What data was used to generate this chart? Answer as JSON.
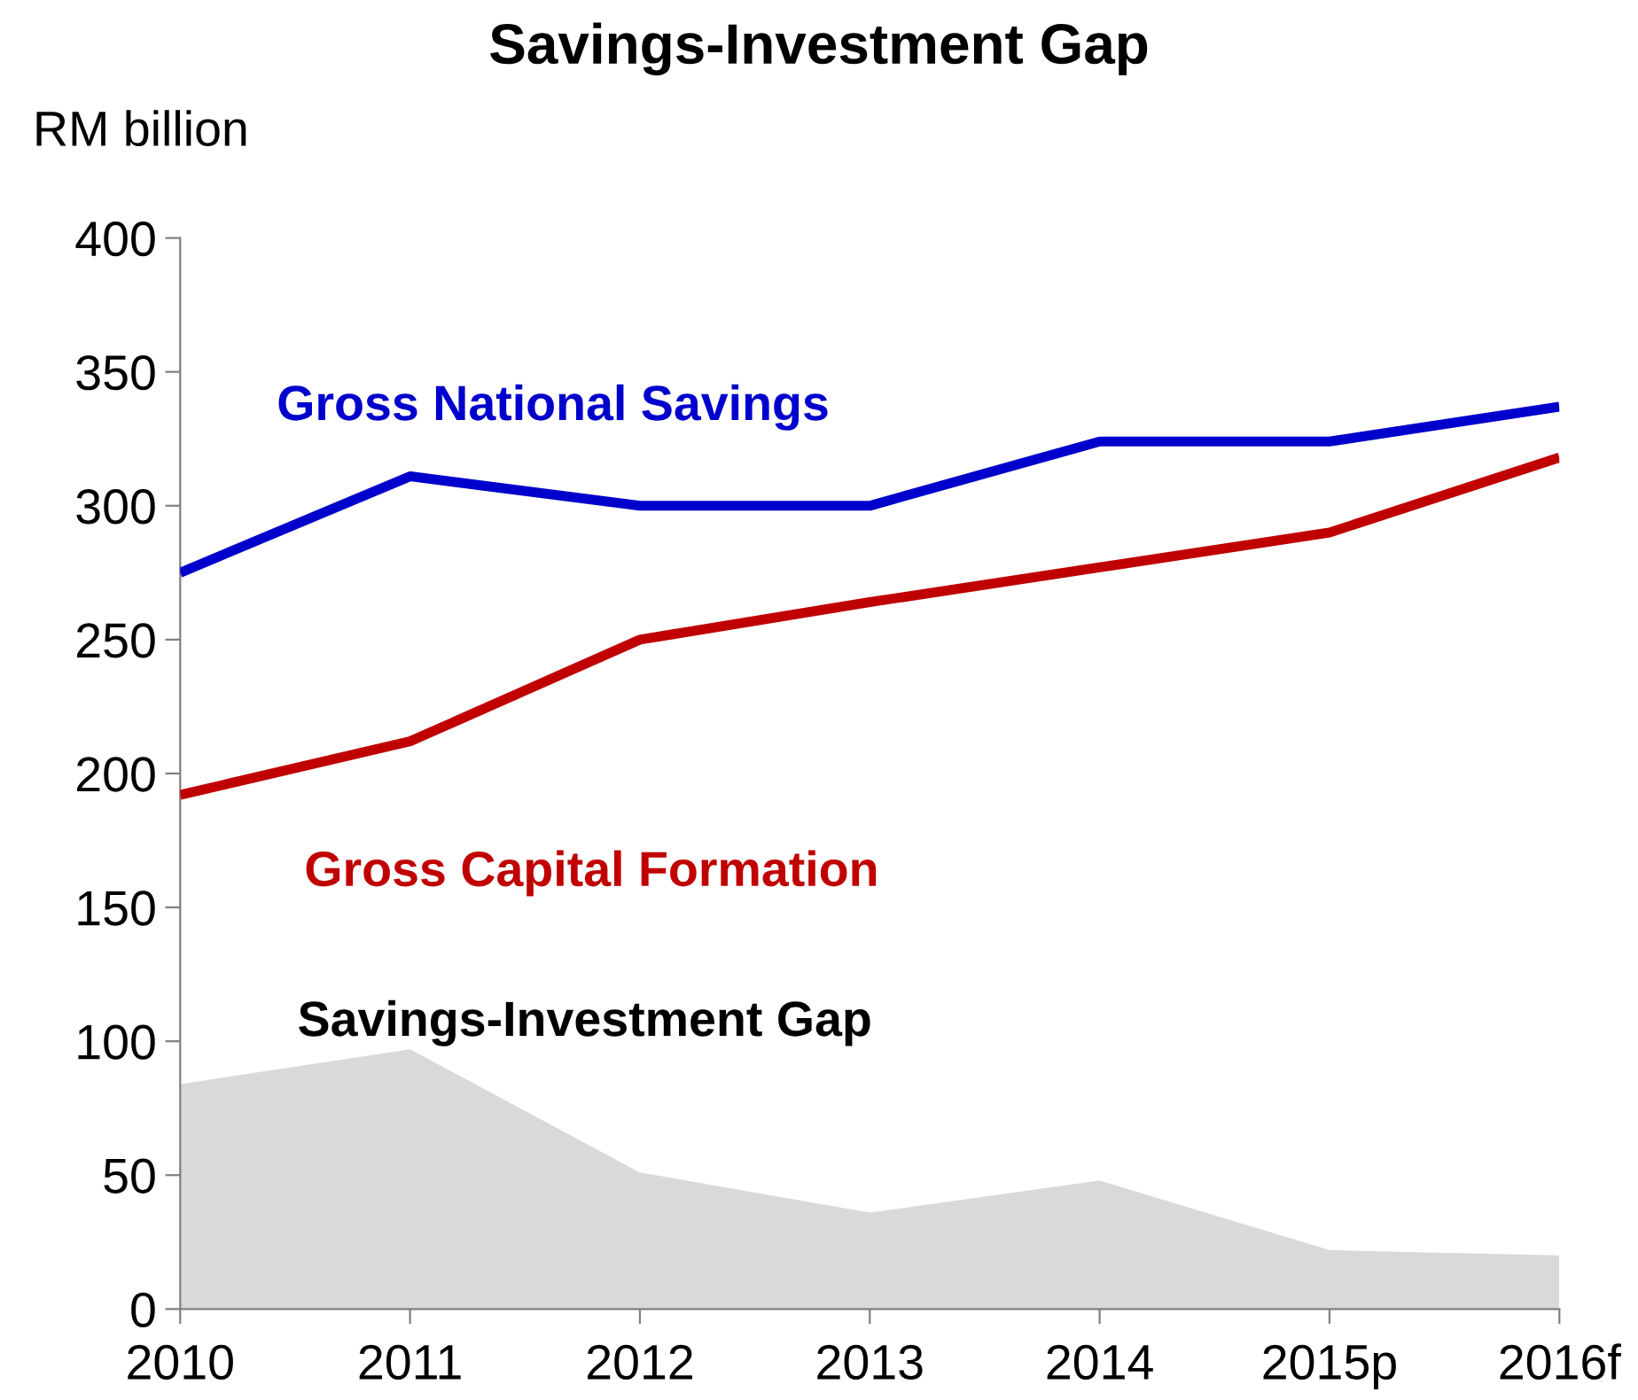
{
  "chart_data": {
    "type": "line",
    "title": "Savings-Investment Gap",
    "ylabel": "RM billion",
    "categories": [
      "2010",
      "2011",
      "2012",
      "2013",
      "2014",
      "2015p",
      "2016f"
    ],
    "series": [
      {
        "name": "Gross National Savings",
        "color": "#0000cc",
        "values": [
          275,
          311,
          300,
          300,
          324,
          324,
          337
        ]
      },
      {
        "name": "Gross Capital Formation",
        "color": "#c00000",
        "values": [
          192,
          212,
          250,
          264,
          277,
          290,
          318
        ]
      },
      {
        "name": "Savings-Investment Gap",
        "type": "area",
        "color": "#d9d9d9",
        "values": [
          84,
          97,
          51,
          36,
          48,
          22,
          20
        ]
      }
    ],
    "ylim": [
      0,
      400
    ],
    "yticks": [
      0,
      50,
      100,
      150,
      200,
      250,
      300,
      350,
      400
    ],
    "grid": false,
    "legend": false,
    "marker": "none",
    "line_style": "solid"
  }
}
